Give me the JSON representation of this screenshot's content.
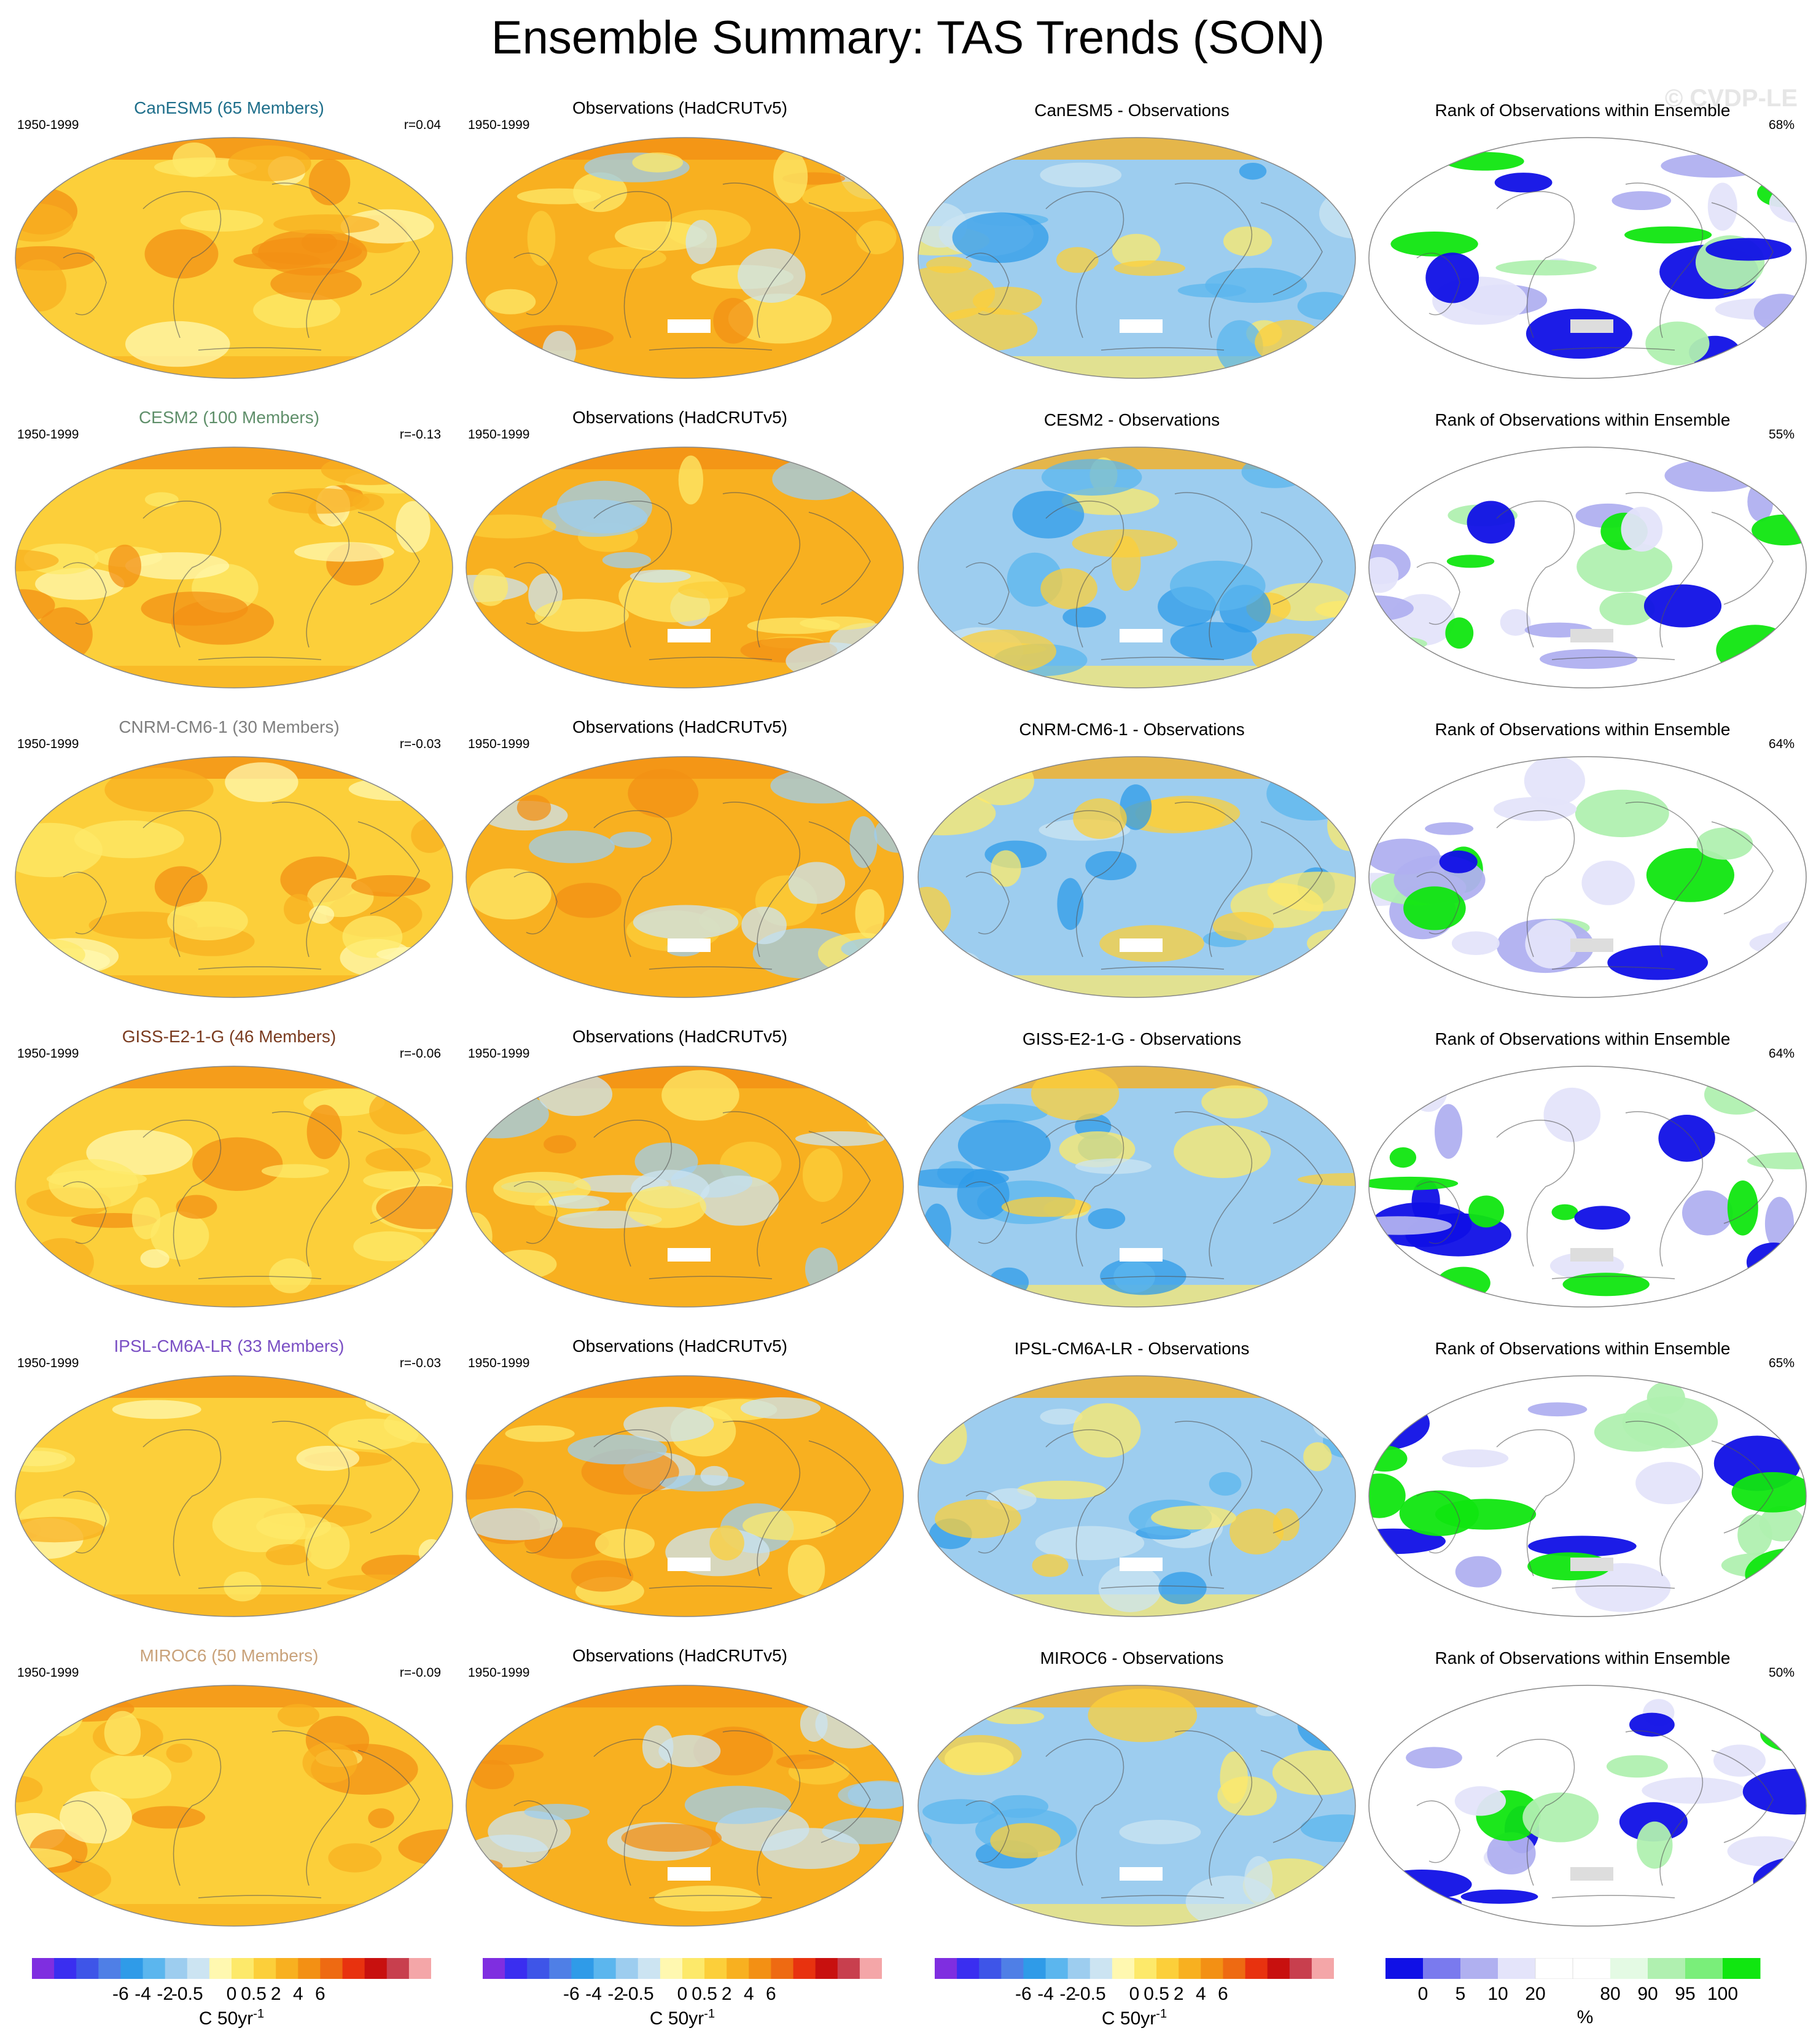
{
  "title": "Ensemble Summary: TAS Trends (SON)",
  "watermark": "© CVDP-LE",
  "rows": [
    {
      "model_title": "CanESM5 (65 Members)",
      "model_color": "#1f6f8b",
      "period": "1950-1999",
      "r": "r=0.04",
      "obs_title": "Observations (HadCRUTv5)",
      "diff_title": "CanESM5 - Observations",
      "rank_title": "Rank of Observations within Ensemble",
      "rank_pct": "68%"
    },
    {
      "model_title": "CESM2 (100 Members)",
      "model_color": "#5f8f6a",
      "period": "1950-1999",
      "r": "r=-0.13",
      "obs_title": "Observations (HadCRUTv5)",
      "diff_title": "CESM2 - Observations",
      "rank_title": "Rank of Observations within Ensemble",
      "rank_pct": "55%"
    },
    {
      "model_title": "CNRM-CM6-1 (30 Members)",
      "model_color": "#7f7f7f",
      "period": "1950-1999",
      "r": "r=-0.03",
      "obs_title": "Observations (HadCRUTv5)",
      "diff_title": "CNRM-CM6-1 - Observations",
      "rank_title": "Rank of Observations within Ensemble",
      "rank_pct": "64%"
    },
    {
      "model_title": "GISS-E2-1-G (46 Members)",
      "model_color": "#7a3b1f",
      "period": "1950-1999",
      "r": "r=-0.06",
      "obs_title": "Observations (HadCRUTv5)",
      "diff_title": "GISS-E2-1-G - Observations",
      "rank_title": "Rank of Observations within Ensemble",
      "rank_pct": "64%"
    },
    {
      "model_title": "IPSL-CM6A-LR (33 Members)",
      "model_color": "#7a4fc4",
      "period": "1950-1999",
      "r": "r=-0.03",
      "obs_title": "Observations (HadCRUTv5)",
      "diff_title": "IPSL-CM6A-LR - Observations",
      "rank_title": "Rank of Observations within Ensemble",
      "rank_pct": "65%"
    },
    {
      "model_title": "MIROC6 (50 Members)",
      "model_color": "#c9a27a",
      "period": "1950-1999",
      "r": "r=-0.09",
      "obs_title": "Observations (HadCRUTv5)",
      "diff_title": "MIROC6 - Observations",
      "rank_title": "Rank of Observations within Ensemble",
      "rank_pct": "50%"
    }
  ],
  "colorbars": {
    "trend_colors": [
      "#7f2ee0",
      "#3a2ef0",
      "#3e55e8",
      "#4f7fe6",
      "#2f9be8",
      "#5bb6ee",
      "#9dcdef",
      "#cce4f2",
      "#fff8b0",
      "#fde96a",
      "#fccf3a",
      "#f8b020",
      "#f39014",
      "#ee6a12",
      "#e8320f",
      "#c8100f",
      "#c83f4e",
      "#f4a6a8"
    ],
    "trend_ticks": [
      "-6",
      "-4",
      "-2",
      "-0.5",
      "0",
      "0.5",
      "2",
      "4",
      "6"
    ],
    "trend_label": "C 50yr",
    "trend_label_sup": "-1",
    "rank_colors": [
      "#1010e6",
      "#7a7aee",
      "#b0b0f0",
      "#e4e4fa",
      "#ffffff",
      "#ffffff",
      "#e4fae4",
      "#b0f0b0",
      "#7aee7a",
      "#10e610"
    ],
    "rank_ticks": [
      "0",
      "5",
      "10",
      "20",
      "80",
      "90",
      "95",
      "100"
    ],
    "rank_label": "%"
  },
  "map_colors": {
    "model_base": "#fccf3a",
    "obs_base": "#f8b020",
    "diff_base": "#9dcdef",
    "rank_low": "#1010e6",
    "rank_high": "#10e610",
    "land_line": "#555555"
  }
}
